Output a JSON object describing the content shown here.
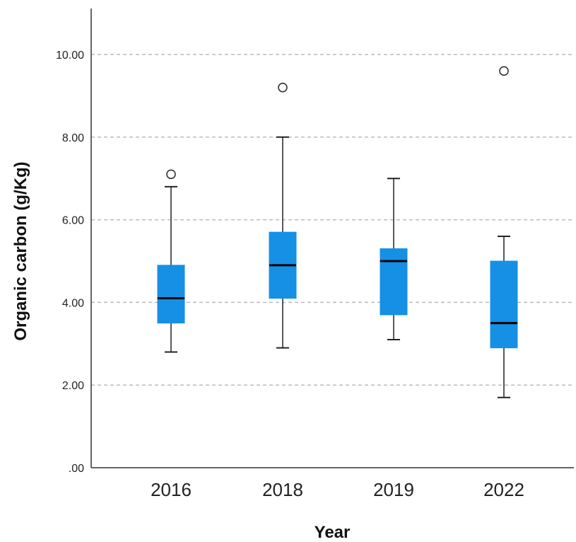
{
  "chart_data": {
    "type": "boxplot",
    "xlabel": "Year",
    "ylabel": "Organic carbon (g/Kg)",
    "ylim": [
      0,
      11.1
    ],
    "yticks": [
      0,
      2,
      4,
      6,
      8,
      10
    ],
    "ytick_labels": [
      ".00",
      "2.00",
      "4.00",
      "6.00",
      "8.00",
      "10.00"
    ],
    "grid": "horizontal dashed",
    "colors": {
      "box": "#1590e5",
      "median": "#000000",
      "whisker": "#222222",
      "grid": "#bbbbbb"
    },
    "categories": [
      "2016",
      "2018",
      "2019",
      "2022"
    ],
    "boxes": [
      {
        "category": "2016",
        "whisker_low": 2.8,
        "q1": 3.5,
        "median": 4.1,
        "q3": 4.9,
        "whisker_high": 6.8,
        "outliers": [
          7.1
        ]
      },
      {
        "category": "2018",
        "whisker_low": 2.9,
        "q1": 4.1,
        "median": 4.9,
        "q3": 5.7,
        "whisker_high": 8.0,
        "outliers": [
          9.2
        ]
      },
      {
        "category": "2019",
        "whisker_low": 3.1,
        "q1": 3.7,
        "median": 5.0,
        "q3": 5.3,
        "whisker_high": 7.0,
        "outliers": []
      },
      {
        "category": "2022",
        "whisker_low": 1.7,
        "q1": 2.9,
        "median": 3.5,
        "q3": 5.0,
        "whisker_high": 5.6,
        "outliers": [
          9.6
        ]
      }
    ]
  }
}
